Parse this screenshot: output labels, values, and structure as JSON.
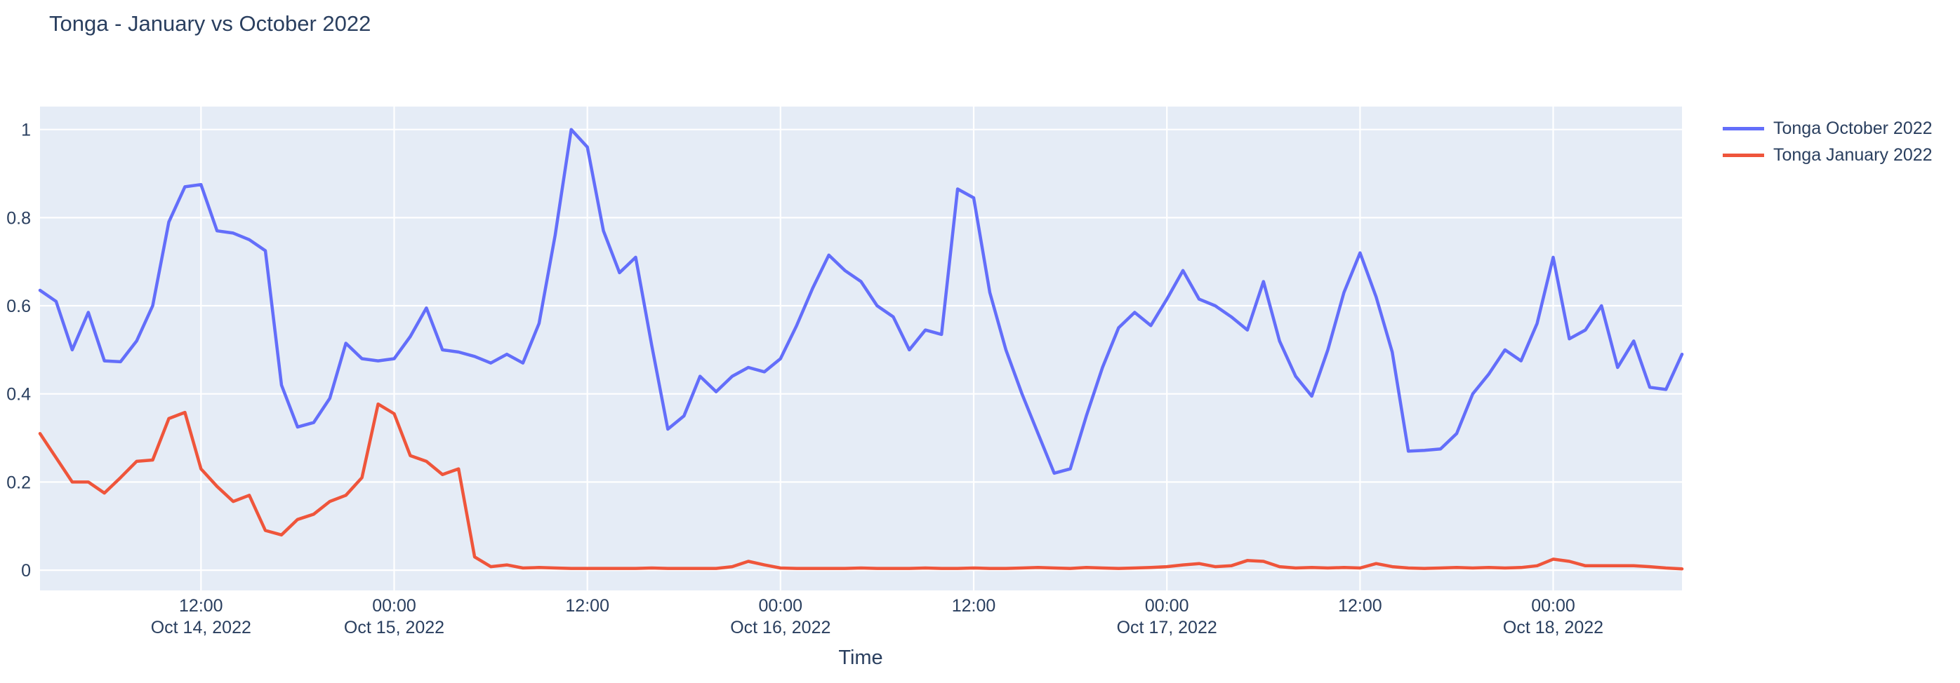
{
  "chart": {
    "title": "Tonga - January vs October 2022",
    "xlabel": "Time",
    "colors": {
      "background": "#ffffff",
      "plot_background": "#E5ECF6",
      "grid": "#ffffff",
      "text": "#2a3f5f"
    }
  },
  "chart_data": {
    "type": "line",
    "title": "Tonga - January vs October 2022",
    "xlabel": "Time",
    "ylabel": "",
    "grid": true,
    "legend_position": "top-right-outside",
    "x_start": "2022-10-14 02:00",
    "x_step_hours": 1,
    "ylim": [
      -0.046,
      1.052
    ],
    "y_ticks": [
      0,
      0.2,
      0.4,
      0.6,
      0.8,
      1
    ],
    "y_tick_labels": [
      "0",
      "0.2",
      "0.4",
      "0.6",
      "0.8",
      "1"
    ],
    "x_ticks": [
      {
        "hour_index": 10,
        "time": "12:00",
        "date": "Oct 14, 2022"
      },
      {
        "hour_index": 22,
        "time": "00:00",
        "date": "Oct 15, 2022"
      },
      {
        "hour_index": 34,
        "time": "12:00",
        "date": ""
      },
      {
        "hour_index": 46,
        "time": "00:00",
        "date": "Oct 16, 2022"
      },
      {
        "hour_index": 58,
        "time": "12:00",
        "date": ""
      },
      {
        "hour_index": 70,
        "time": "00:00",
        "date": "Oct 17, 2022"
      },
      {
        "hour_index": 82,
        "time": "12:00",
        "date": ""
      },
      {
        "hour_index": 94,
        "time": "00:00",
        "date": "Oct 18, 2022"
      }
    ],
    "series": [
      {
        "name": "Tonga October 2022",
        "color": "#636EFA",
        "values": [
          0.635,
          0.61,
          0.5,
          0.585,
          0.475,
          0.473,
          0.52,
          0.6,
          0.79,
          0.87,
          0.875,
          0.77,
          0.765,
          0.75,
          0.725,
          0.42,
          0.325,
          0.335,
          0.39,
          0.515,
          0.48,
          0.475,
          0.48,
          0.53,
          0.595,
          0.5,
          0.495,
          0.485,
          0.47,
          0.49,
          0.47,
          0.56,
          0.76,
          1.0,
          0.96,
          0.77,
          0.675,
          0.71,
          0.51,
          0.32,
          0.35,
          0.44,
          0.405,
          0.44,
          0.46,
          0.45,
          0.48,
          0.555,
          0.64,
          0.715,
          0.68,
          0.655,
          0.6,
          0.575,
          0.5,
          0.545,
          0.535,
          0.865,
          0.845,
          0.63,
          0.5,
          0.4,
          0.31,
          0.22,
          0.23,
          0.35,
          0.46,
          0.55,
          0.585,
          0.555,
          0.615,
          0.68,
          0.615,
          0.6,
          0.575,
          0.545,
          0.655,
          0.52,
          0.44,
          0.395,
          0.5,
          0.63,
          0.72,
          0.62,
          0.495,
          0.27,
          0.272,
          0.275,
          0.31,
          0.4,
          0.445,
          0.5,
          0.475,
          0.56,
          0.71,
          0.525,
          0.545,
          0.6,
          0.46,
          0.52,
          0.415,
          0.41,
          0.49
        ]
      },
      {
        "name": "Tonga January 2022",
        "color": "#EF553B",
        "values": [
          0.31,
          0.255,
          0.2,
          0.2,
          0.175,
          0.21,
          0.247,
          0.25,
          0.344,
          0.358,
          0.23,
          0.19,
          0.156,
          0.17,
          0.09,
          0.08,
          0.115,
          0.127,
          0.156,
          0.17,
          0.21,
          0.377,
          0.355,
          0.26,
          0.247,
          0.217,
          0.23,
          0.03,
          0.008,
          0.012,
          0.005,
          0.006,
          0.005,
          0.004,
          0.004,
          0.004,
          0.004,
          0.004,
          0.005,
          0.004,
          0.004,
          0.004,
          0.004,
          0.008,
          0.02,
          0.012,
          0.005,
          0.004,
          0.004,
          0.004,
          0.004,
          0.005,
          0.004,
          0.004,
          0.004,
          0.005,
          0.004,
          0.004,
          0.005,
          0.004,
          0.004,
          0.005,
          0.006,
          0.005,
          0.004,
          0.006,
          0.005,
          0.004,
          0.005,
          0.006,
          0.008,
          0.012,
          0.015,
          0.008,
          0.01,
          0.022,
          0.02,
          0.008,
          0.005,
          0.006,
          0.005,
          0.006,
          0.005,
          0.015,
          0.008,
          0.005,
          0.004,
          0.005,
          0.006,
          0.005,
          0.006,
          0.005,
          0.006,
          0.01,
          0.025,
          0.02,
          0.01,
          0.01,
          0.01,
          0.01,
          0.008,
          0.005,
          0.003
        ]
      }
    ]
  }
}
